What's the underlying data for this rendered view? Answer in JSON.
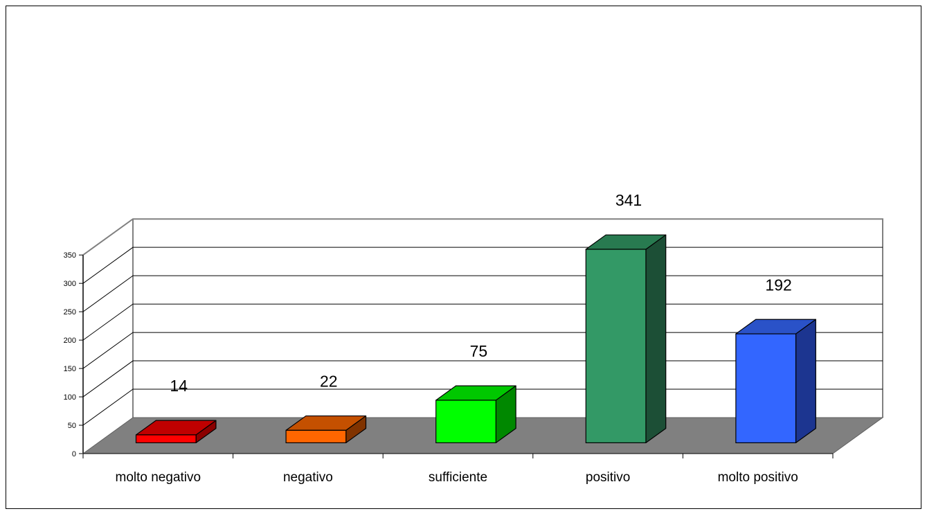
{
  "chart_data": {
    "type": "bar",
    "categories": [
      "molto negativo",
      "negativo",
      "sufficiente",
      "positivo",
      "molto positivo"
    ],
    "values": [
      14,
      22,
      75,
      341,
      192
    ],
    "colors": [
      {
        "front": "#ff0000",
        "top": "#c00000",
        "side": "#8b0000"
      },
      {
        "front": "#ff6600",
        "top": "#c45000",
        "side": "#803300"
      },
      {
        "front": "#00ff00",
        "top": "#00c800",
        "side": "#008800"
      },
      {
        "front": "#339966",
        "top": "#287a50",
        "side": "#1c4f36"
      },
      {
        "front": "#3366ff",
        "top": "#2a52c8",
        "side": "#1c3590"
      }
    ],
    "y_ticks": [
      "0",
      "50",
      "100",
      "150",
      "200",
      "250",
      "300",
      "350"
    ],
    "ylim": [
      0,
      350
    ],
    "grid": true,
    "floor_color": "#808080",
    "title": "",
    "xlabel": "",
    "ylabel": ""
  }
}
